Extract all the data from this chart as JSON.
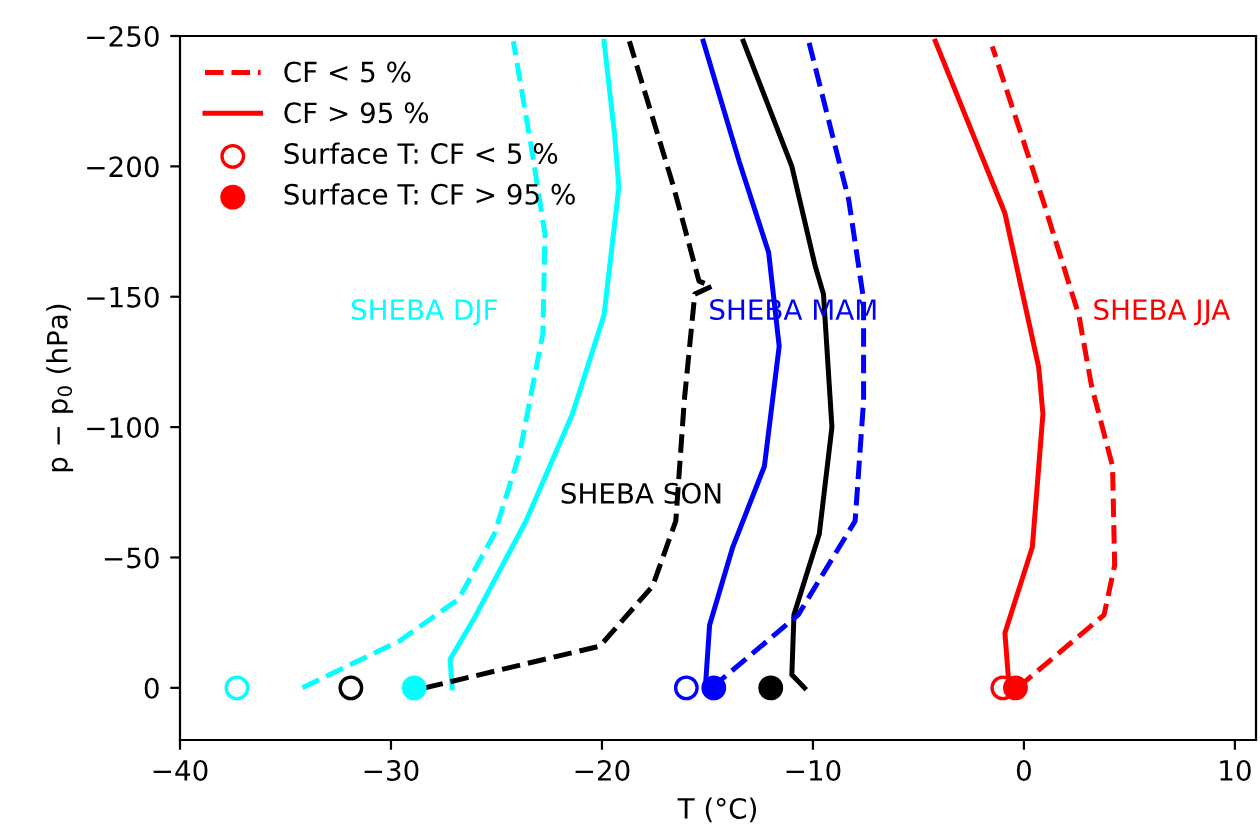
{
  "chart_data": {
    "type": "line",
    "xlabel": "T (°C)",
    "ylabel": "p − p$_{0}$ (hPa)",
    "xlim": [
      -40,
      11
    ],
    "ylim": [
      20,
      -250
    ],
    "xticks": [
      {
        "value": -40,
        "label": "−40"
      },
      {
        "value": -30,
        "label": "−30"
      },
      {
        "value": -20,
        "label": "−20"
      },
      {
        "value": -10,
        "label": "−10"
      },
      0,
      10
    ],
    "yticks": [
      {
        "value": -250,
        "label": "−250"
      },
      {
        "value": -200,
        "label": "−200"
      },
      {
        "value": -150,
        "label": "−150"
      },
      {
        "value": -100,
        "label": "−100"
      },
      {
        "value": -50,
        "label": "−50"
      },
      0
    ],
    "legend": "top left",
    "series": [
      {
        "name": "CF < 5 %",
        "line_style": "dashed",
        "color": "#ff0000",
        "x": [
          -0.3,
          3.8,
          4.3,
          4.2,
          3.2,
          2.6,
          0.9,
          -1.5
        ],
        "values": [
          0,
          -28,
          -47,
          -85,
          -116,
          -143,
          -187,
          -246
        ]
      },
      {
        "name": "CF > 95 %",
        "line_style": "solid",
        "color": "#ff0000",
        "x": [
          -0.7,
          -0.9,
          0.4,
          0.9,
          0.7,
          -0.9,
          -2.4,
          -4.2
        ],
        "values": [
          0,
          -21,
          -54,
          -105,
          -123,
          -182,
          -212,
          -248
        ]
      },
      {
        "name": "Surface T: CF < 5 %",
        "type": "scatter",
        "marker": "circle",
        "color": "#ff0000",
        "colors": [
          "#ffffff"
        ],
        "x": [
          -1.0
        ],
        "values": [
          0
        ]
      },
      {
        "name": "Surface T: CF > 95 %",
        "type": "scatter",
        "marker": "circle",
        "color": "#ff0000",
        "x": [
          -0.4
        ],
        "values": [
          0
        ]
      },
      {
        "line_style": "dashed",
        "color": "#00ffff",
        "x": [
          -34.2,
          -29.6,
          -26.8,
          -25.1,
          -23.9,
          -22.8,
          -22.7,
          -23.3,
          -24.2
        ],
        "values": [
          0,
          -18,
          -34,
          -59,
          -90,
          -136,
          -174,
          -205,
          -248
        ]
      },
      {
        "line_style": "solid",
        "color": "#00ffff",
        "x": [
          -27.1,
          -27.2,
          -26.1,
          -23.6,
          -21.4,
          -19.9,
          -19.2,
          -19.4,
          -19.9
        ],
        "values": [
          0,
          -11,
          -26,
          -64,
          -105,
          -143,
          -192,
          -212,
          -248
        ]
      },
      {
        "type": "scatter",
        "marker": "circle",
        "color": "#00ffff",
        "colors": [
          "#ffffff"
        ],
        "x": [
          -37.3
        ],
        "values": [
          0
        ]
      },
      {
        "type": "scatter",
        "marker": "circle",
        "color": "#00ffff",
        "x": [
          -28.9
        ],
        "values": [
          0
        ]
      },
      {
        "line_style": "dashed",
        "color": "#000000",
        "x": [
          -28.4,
          -20.1,
          -17.6,
          -16.5,
          -16.1,
          -15.6,
          -14.8,
          -15.4,
          -16.6,
          -18.7
        ],
        "values": [
          0,
          -16,
          -39,
          -64,
          -110,
          -151,
          -154,
          -156,
          -192,
          -248
        ]
      },
      {
        "line_style": "solid",
        "color": "#000000",
        "x": [
          -10.4,
          -11.0,
          -10.9,
          -9.7,
          -9.1,
          -9.5,
          -9.9,
          -11.0,
          -13.3
        ],
        "values": [
          0,
          -5,
          -28,
          -59,
          -100,
          -151,
          -162,
          -200,
          -248
        ]
      },
      {
        "type": "scatter",
        "marker": "circle",
        "color": "#000000",
        "colors": [
          "#ffffff"
        ],
        "x": [
          -31.9
        ],
        "values": [
          0
        ]
      },
      {
        "type": "scatter",
        "marker": "circle",
        "color": "#000000",
        "x": [
          -12.0
        ],
        "values": [
          0
        ]
      },
      {
        "line_style": "dashed",
        "color": "#0000ff",
        "x": [
          -14.8,
          -10.7,
          -8.0,
          -7.6,
          -7.6,
          -8.3,
          -10.2
        ],
        "values": [
          0,
          -28,
          -64,
          -110,
          -149,
          -187,
          -248
        ]
      },
      {
        "line_style": "solid",
        "color": "#0000ff",
        "x": [
          -15.1,
          -14.9,
          -13.8,
          -12.3,
          -11.6,
          -12.1,
          -13.5,
          -15.2
        ],
        "values": [
          0,
          -24,
          -54,
          -85,
          -131,
          -167,
          -202,
          -248
        ]
      },
      {
        "type": "scatter",
        "marker": "circle",
        "color": "#0000ff",
        "colors": [
          "#ffffff"
        ],
        "x": [
          -16.0
        ],
        "values": [
          0
        ]
      },
      {
        "type": "scatter",
        "marker": "circle",
        "color": "#0000ff",
        "x": [
          -14.7
        ],
        "values": [
          0
        ]
      }
    ],
    "annotations": [
      "SHEBA DJF",
      "SHEBA MAM",
      "SHEBA JJA",
      "SHEBA SON"
    ]
  }
}
